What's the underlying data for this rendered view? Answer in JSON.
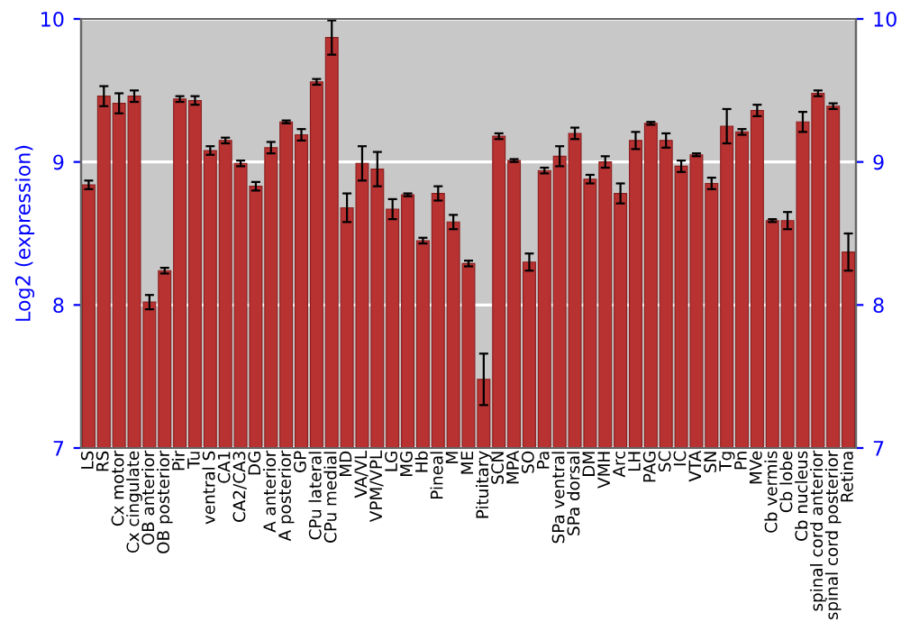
{
  "chart_data": {
    "type": "bar",
    "ylabel": "Log2 (expression)",
    "categories": [
      "LS",
      "RS",
      "Cx motor",
      "Cx cingulate",
      "OB anterior",
      "OB posterior",
      "Pir",
      "Tu",
      "ventral S",
      "CA1",
      "CA2/CA3",
      "DG",
      "A anterior",
      "A posterior",
      "GP",
      "CPu lateral",
      "CPu medial",
      "MD",
      "VA/VL",
      "VPM/VPL",
      "LG",
      "MG",
      "Hb",
      "Pineal",
      "M",
      "ME",
      "Pituitary",
      "SCN",
      "MPA",
      "SO",
      "Pa",
      "SPa ventral",
      "SPa dorsal",
      "DM",
      "VMH",
      "Arc",
      "LH",
      "PAG",
      "SC",
      "IC",
      "VTA",
      "SN",
      "Tg",
      "Pn",
      "MVe",
      "Cb vermis",
      "Cb lobe",
      "Cb nucleus",
      "spinal cord anterior",
      "spinal cord posterior",
      "Retina"
    ],
    "values": [
      8.84,
      9.46,
      9.41,
      9.46,
      8.02,
      8.24,
      9.44,
      9.43,
      9.08,
      9.15,
      8.99,
      8.83,
      9.1,
      9.28,
      9.19,
      9.56,
      9.87,
      8.68,
      8.99,
      8.95,
      8.67,
      8.77,
      8.45,
      8.78,
      8.58,
      8.29,
      7.48,
      9.18,
      9.01,
      8.3,
      8.94,
      9.04,
      9.2,
      8.88,
      9.0,
      8.78,
      9.15,
      9.27,
      9.15,
      8.97,
      9.05,
      8.85,
      9.25,
      9.21,
      9.36,
      8.59,
      8.59,
      9.28,
      9.48,
      9.39,
      8.37
    ],
    "errors": [
      0.03,
      0.07,
      0.07,
      0.04,
      0.05,
      0.02,
      0.02,
      0.03,
      0.03,
      0.02,
      0.02,
      0.03,
      0.04,
      0.01,
      0.04,
      0.02,
      0.12,
      0.1,
      0.12,
      0.12,
      0.07,
      0.01,
      0.02,
      0.05,
      0.05,
      0.02,
      0.18,
      0.02,
      0.01,
      0.06,
      0.02,
      0.07,
      0.04,
      0.03,
      0.04,
      0.07,
      0.06,
      0.01,
      0.05,
      0.04,
      0.01,
      0.04,
      0.12,
      0.02,
      0.04,
      0.01,
      0.06,
      0.07,
      0.02,
      0.02,
      0.13
    ],
    "color": "#b83232",
    "ylim": [
      7,
      10
    ],
    "yticks": [
      7,
      8,
      9,
      10
    ],
    "y2lim": [
      7,
      10
    ],
    "y2ticks": [
      7,
      8,
      9,
      10
    ],
    "grid": "y",
    "legend": false
  }
}
